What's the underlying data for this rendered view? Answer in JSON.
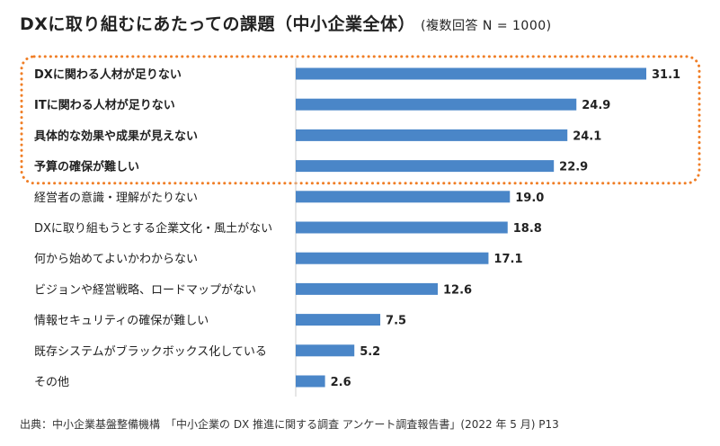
{
  "title": "DXに取り組むにあたっての課題",
  "subtitle": "（中小企業全体）",
  "note": "(複数回答 N = 1000)",
  "source": "出典：中小企業基盤整備機構　「中小企業の DX 推進に関する調査 アンケート調査報告書」(2022 年 5 月) P13",
  "colors": {
    "bar": "#4a86c8",
    "highlight": "#f07e26",
    "axis": "#cccccc",
    "text": "#222222"
  },
  "chart_data": {
    "type": "bar",
    "orientation": "horizontal",
    "categories": [
      "DXに関わる人材が足りない",
      "ITに関わる人材が足りない",
      "具体的な効果や成果が見えない",
      "予算の確保が難しい",
      "経営者の意識・理解がたりない",
      "DXに取り組もうとする企業文化・風土がない",
      "何から始めてよいかわからない",
      "ビジョンや経営戦略、ロードマップがない",
      "情報セキュリティの確保が難しい",
      "既存システムがブラックボックス化している",
      "その他"
    ],
    "values": [
      31.1,
      24.9,
      24.1,
      22.9,
      19.0,
      18.8,
      17.1,
      12.6,
      7.5,
      5.2,
      2.6
    ],
    "value_labels": [
      "31.1",
      "24.9",
      "24.1",
      "22.9",
      "19.0",
      "18.8",
      "17.1",
      "12.6",
      "7.5",
      "5.2",
      "2.6"
    ],
    "highlighted_count": 4,
    "xlim": [
      0,
      31.1
    ],
    "grid": false,
    "legend": "none"
  }
}
